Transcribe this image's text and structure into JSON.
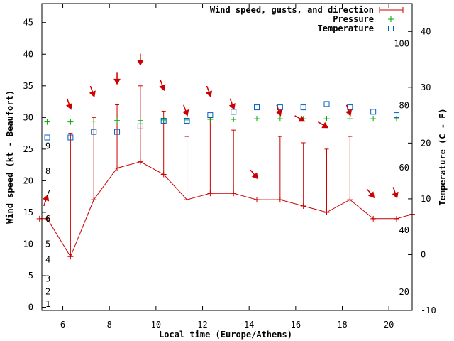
{
  "chart_data": {
    "type": "line",
    "xlabel": "Local time (Europe/Athens)",
    "ylabel": "Wind speed (kt - Beaufort)",
    "y2label": "Temperature (C - F)",
    "xlim": [
      5.1,
      21.0
    ],
    "ylim": [
      -0.5,
      48
    ],
    "y2lim": [
      -10,
      45
    ],
    "x_ticks": [
      6,
      8,
      10,
      12,
      14,
      16,
      18,
      20
    ],
    "y_ticks": [
      0,
      5,
      10,
      15,
      20,
      25,
      30,
      35,
      40,
      45
    ],
    "y2_ticks": [
      -10,
      0,
      10,
      20,
      30,
      40
    ],
    "beaufort_labels": [
      {
        "label": "1",
        "kt": 0.5
      },
      {
        "label": "2",
        "kt": 2.5
      },
      {
        "label": "3",
        "kt": 4.5
      },
      {
        "label": "4",
        "kt": 7.5
      },
      {
        "label": "5",
        "kt": 10
      },
      {
        "label": "6",
        "kt": 14
      },
      {
        "label": "7",
        "kt": 18
      },
      {
        "label": "8",
        "kt": 21.5
      },
      {
        "label": "9",
        "kt": 25.5
      }
    ],
    "fahrenheit_labels": [
      {
        "label": "20",
        "c": -6.7
      },
      {
        "label": "40",
        "c": 4.4
      },
      {
        "label": "60",
        "c": 15.6
      },
      {
        "label": "80",
        "c": 26.7
      },
      {
        "label": "100",
        "c": 37.8
      }
    ],
    "legend": [
      {
        "name": "Wind speed, gusts, and direction",
        "color": "#cc0000"
      },
      {
        "name": "Pressure",
        "color": "#00aa00"
      },
      {
        "name": "Temperature",
        "color": "#0060c0"
      }
    ],
    "series": {
      "wind_speed": {
        "x": [
          5.0,
          5.33,
          6.33,
          7.33,
          8.33,
          9.33,
          10.33,
          11.33,
          12.33,
          13.33,
          14.33,
          15.33,
          16.33,
          17.33,
          18.33,
          19.33,
          20.33,
          21.0
        ],
        "values": [
          14,
          14,
          8,
          17,
          22,
          23,
          21,
          17,
          18,
          18,
          17,
          17,
          16,
          15,
          17,
          14,
          14,
          14.7
        ]
      },
      "gusts": {
        "x": [
          5.33,
          6.33,
          7.33,
          8.33,
          9.33,
          10.33,
          11.33,
          12.33,
          13.33,
          14.33,
          15.33,
          16.33,
          17.33,
          18.33,
          19.33,
          20.33
        ],
        "values": [
          14,
          27.5,
          30,
          32,
          35,
          31,
          27,
          30,
          28,
          17,
          27,
          26,
          25,
          27,
          14,
          14
        ]
      },
      "direction_arrows": {
        "x": [
          5.33,
          6.33,
          7.33,
          8.33,
          9.33,
          10.33,
          11.33,
          12.33,
          13.33,
          14.33,
          15.33,
          16.33,
          17.33,
          18.33,
          19.33,
          20.33
        ],
        "kt": [
          17.5,
          31.5,
          33.5,
          35.5,
          38.5,
          34.5,
          30.5,
          33.5,
          31.5,
          20.5,
          30.5,
          29.5,
          28.5,
          30.5,
          17.5,
          17.5
        ],
        "azimuth_deg": [
          200,
          340,
          340,
          360,
          360,
          340,
          340,
          340,
          340,
          320,
          340,
          300,
          300,
          340,
          320,
          340
        ]
      },
      "pressure": {
        "x": [
          5.33,
          6.33,
          7.33,
          8.33,
          9.33,
          10.33,
          11.33,
          12.33,
          13.33,
          14.33,
          15.33,
          16.33,
          17.33,
          18.33,
          19.33,
          20.33
        ],
        "values": [
          29.3,
          29.3,
          29.4,
          29.5,
          29.5,
          29.6,
          29.6,
          29.7,
          29.7,
          29.8,
          29.8,
          29.8,
          29.8,
          29.8,
          29.8,
          29.8
        ]
      },
      "temperature": {
        "x": [
          5.33,
          6.33,
          7.33,
          8.33,
          9.33,
          10.33,
          11.33,
          12.33,
          13.33,
          14.33,
          15.33,
          16.33,
          17.33,
          18.33,
          19.33,
          20.33
        ],
        "values": [
          21,
          21,
          22,
          22,
          23,
          24,
          24,
          25,
          25.6,
          26.4,
          26.4,
          26.4,
          27,
          26.4,
          25.6,
          25
        ]
      }
    }
  }
}
